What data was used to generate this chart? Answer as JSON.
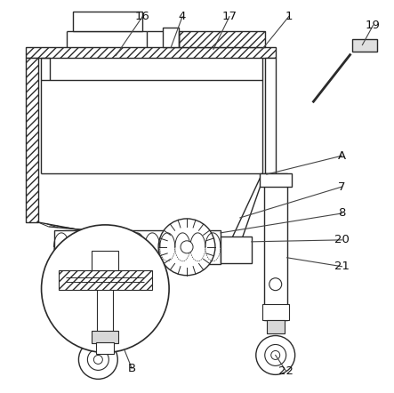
{
  "background_color": "#ffffff",
  "line_color": "#2a2a2a",
  "fig_width": 4.43,
  "fig_height": 4.42,
  "dpi": 100
}
